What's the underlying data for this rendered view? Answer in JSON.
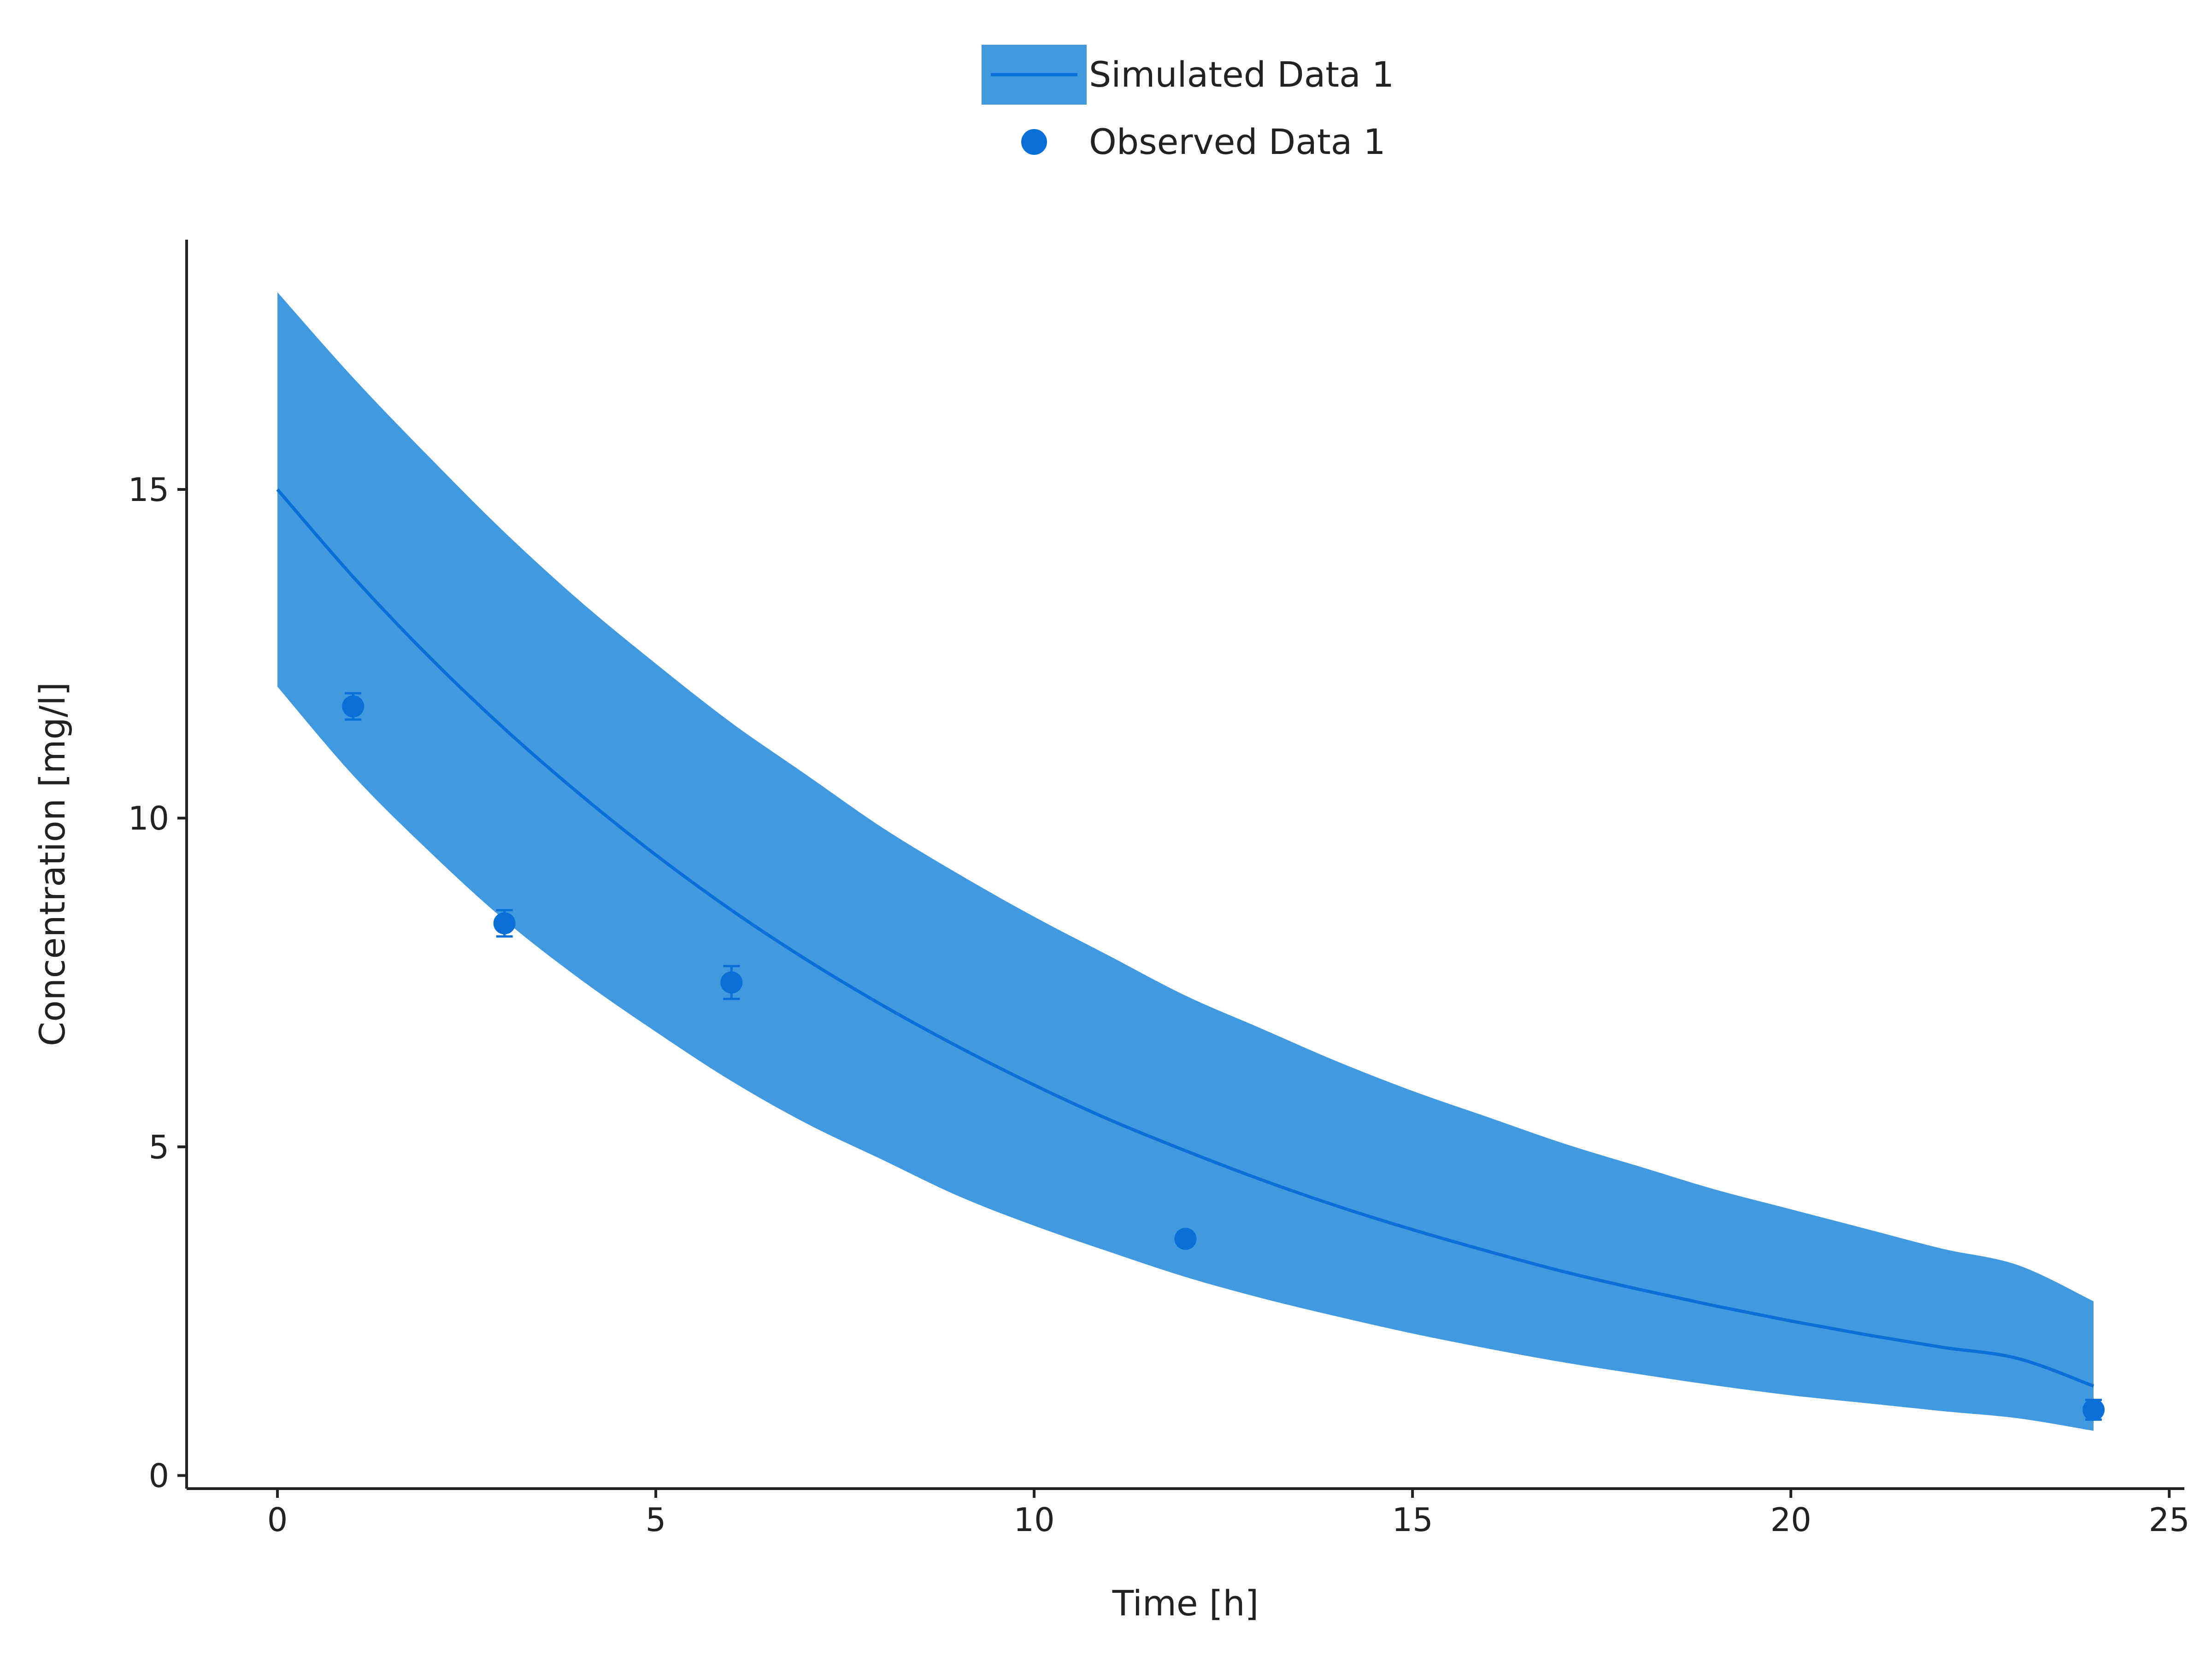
{
  "chart_data": {
    "type": "line",
    "xlabel": "Time [h]",
    "ylabel": "Concentration [mg/l]",
    "xlim": [
      -1.2,
      25.2
    ],
    "ylim": [
      -0.2,
      18.8
    ],
    "xticks": [
      0,
      5,
      10,
      15,
      20,
      25
    ],
    "yticks": [
      0,
      5,
      10,
      15
    ],
    "grid": false,
    "legend_position": "top-center",
    "colors": {
      "band": "#4199E0",
      "line": "#0A6FD6",
      "points": "#0A6FD6",
      "axis": "#222222"
    },
    "series": [
      {
        "name": "Simulated Data 1",
        "type": "line-with-band",
        "x": [
          0,
          1,
          2,
          3,
          4,
          5,
          6,
          7,
          8,
          9,
          10,
          11,
          12,
          13,
          14,
          15,
          16,
          17,
          18,
          19,
          20,
          21,
          22,
          23,
          24
        ],
        "y": [
          15.0,
          13.67,
          12.46,
          11.36,
          10.36,
          9.44,
          8.6,
          7.84,
          7.15,
          6.52,
          5.94,
          5.41,
          4.94,
          4.5,
          4.1,
          3.74,
          3.41,
          3.1,
          2.83,
          2.58,
          2.35,
          2.14,
          1.95,
          1.78,
          1.36
        ],
        "y_upper": [
          18.0,
          16.7,
          15.5,
          14.35,
          13.3,
          12.35,
          11.45,
          10.65,
          9.85,
          9.15,
          8.5,
          7.9,
          7.3,
          6.8,
          6.3,
          5.85,
          5.45,
          5.05,
          4.7,
          4.35,
          4.05,
          3.75,
          3.45,
          3.2,
          2.65
        ],
        "y_lower": [
          12.0,
          10.65,
          9.5,
          8.45,
          7.55,
          6.75,
          6.0,
          5.35,
          4.8,
          4.25,
          3.8,
          3.4,
          3.02,
          2.7,
          2.42,
          2.16,
          1.93,
          1.72,
          1.54,
          1.37,
          1.22,
          1.1,
          0.98,
          0.87,
          0.68
        ]
      },
      {
        "name": "Observed Data 1",
        "type": "scatter",
        "x": [
          1,
          3,
          6,
          12,
          24
        ],
        "y": [
          11.7,
          8.4,
          7.5,
          3.6,
          1.0
        ],
        "error": [
          0.2,
          0.2,
          0.25,
          0.1,
          0.15
        ]
      }
    ]
  }
}
